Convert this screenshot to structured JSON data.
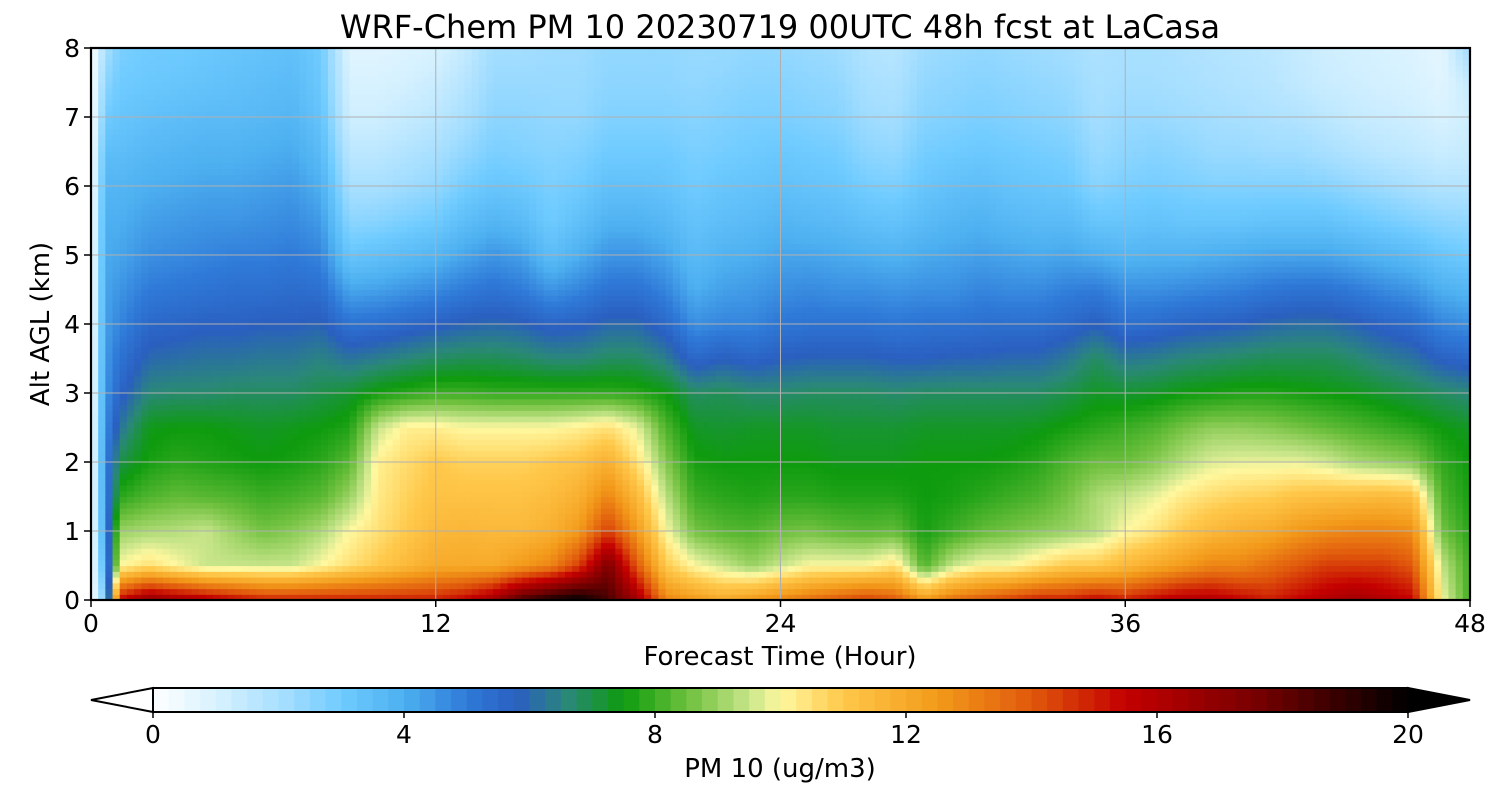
{
  "chart_data": {
    "type": "heatmap",
    "title": "WRF-Chem PM 10  20230719 00UTC 48h fcst at LaCasa",
    "xlabel": "Forecast Time (Hour)",
    "ylabel": "Alt AGL (km)",
    "xlim": [
      0,
      48
    ],
    "ylim": [
      0,
      8
    ],
    "x_ticks": [
      "0",
      "12",
      "24",
      "36",
      "48"
    ],
    "y_ticks": [
      "0",
      "1",
      "2",
      "3",
      "4",
      "5",
      "6",
      "7",
      "8"
    ],
    "grid": true,
    "colorbar": {
      "label": "PM 10  (ug/m3)",
      "range": [
        0,
        20
      ],
      "ticks": [
        "0",
        "4",
        "8",
        "12",
        "16",
        "20"
      ],
      "extend": "both",
      "stops": [
        {
          "v": 0,
          "color": "#ffffff"
        },
        {
          "v": 1,
          "color": "#d8f2ff"
        },
        {
          "v": 2.2,
          "color": "#9fdcff"
        },
        {
          "v": 3,
          "color": "#6fcbff"
        },
        {
          "v": 4,
          "color": "#4db0f0"
        },
        {
          "v": 5,
          "color": "#2f7ad8"
        },
        {
          "v": 5.8,
          "color": "#2a5fc0"
        },
        {
          "v": 6.6,
          "color": "#2a8878"
        },
        {
          "v": 7.5,
          "color": "#0e9b0e"
        },
        {
          "v": 8.5,
          "color": "#6cbf3c"
        },
        {
          "v": 9.5,
          "color": "#c8e58a"
        },
        {
          "v": 10,
          "color": "#fff8a0"
        },
        {
          "v": 11,
          "color": "#ffc84a"
        },
        {
          "v": 12.5,
          "color": "#f39a1a"
        },
        {
          "v": 14,
          "color": "#e0580c"
        },
        {
          "v": 15.5,
          "color": "#c40000"
        },
        {
          "v": 17.5,
          "color": "#7a0000"
        },
        {
          "v": 20,
          "color": "#000000"
        }
      ]
    },
    "series": [
      {
        "x": 0,
        "y": [
          0,
          0,
          0,
          0,
          0,
          0,
          0,
          0,
          0,
          0,
          0,
          0,
          0,
          0,
          0,
          0,
          0
        ]
      },
      {
        "x": 0.5,
        "y": [
          3,
          4,
          4.5,
          4.6,
          4.7,
          4.6,
          4.5,
          4.4,
          4.3,
          4.2,
          4.1,
          4,
          3.8,
          3.5,
          3,
          2.5,
          2
        ]
      },
      {
        "x": 1,
        "y": [
          15.5,
          10,
          9,
          7.8,
          7,
          6.2,
          5.6,
          5.2,
          4.8,
          4.5,
          4.2,
          4,
          3.8,
          3.5,
          3.2,
          3,
          2.8
        ]
      },
      {
        "x": 2,
        "y": [
          17,
          10.5,
          9.2,
          8.2,
          7.6,
          7.4,
          6.6,
          6,
          5.5,
          5,
          4.6,
          4.3,
          4,
          3.7,
          3.4,
          3.1,
          3
        ]
      },
      {
        "x": 3,
        "y": [
          16.5,
          10,
          9.3,
          8.4,
          7.8,
          7.5,
          6.7,
          6.1,
          5.6,
          5.1,
          4.7,
          4.4,
          4.1,
          3.8,
          3.5,
          3.2,
          3
        ]
      },
      {
        "x": 4,
        "y": [
          16,
          9.5,
          9.5,
          8.3,
          7.7,
          7.5,
          6.7,
          6.2,
          5.7,
          5.2,
          4.8,
          4.5,
          4.2,
          3.9,
          3.6,
          3.3,
          3.1
        ]
      },
      {
        "x": 5,
        "y": [
          15.5,
          9.5,
          9,
          8.2,
          7.6,
          7.4,
          6.8,
          6.2,
          5.7,
          5.3,
          4.9,
          4.5,
          4.2,
          3.9,
          3.6,
          3.4,
          3.2
        ]
      },
      {
        "x": 6,
        "y": [
          15,
          9.5,
          8.6,
          8,
          7.5,
          7.3,
          6.8,
          6.3,
          5.8,
          5.3,
          4.9,
          4.6,
          4.3,
          4,
          3.7,
          3.5,
          3.3
        ]
      },
      {
        "x": 7,
        "y": [
          15,
          9.5,
          8.8,
          8.1,
          7.6,
          7.4,
          6.8,
          6.3,
          5.8,
          5.4,
          5,
          4.7,
          4.4,
          4.1,
          3.8,
          3.6,
          3.4
        ]
      },
      {
        "x": 8,
        "y": [
          15,
          10,
          9.2,
          8.3,
          7.8,
          7.5,
          7,
          6.5,
          5.9,
          5.3,
          4.8,
          4.4,
          4,
          3.6,
          3.3,
          3.1,
          3
        ]
      },
      {
        "x": 9,
        "y": [
          15,
          10.5,
          10,
          9,
          8.3,
          7.7,
          7.2,
          6.2,
          5.2,
          4.2,
          3.2,
          2.5,
          2,
          1.6,
          1.2,
          1,
          0.8
        ]
      },
      {
        "x": 10,
        "y": [
          15,
          11,
          10.5,
          10.3,
          10.2,
          9.5,
          7.6,
          6.4,
          5.3,
          4.3,
          3.4,
          2.6,
          2,
          1.6,
          1.2,
          1,
          0.8
        ]
      },
      {
        "x": 11,
        "y": [
          15,
          11.5,
          11,
          10.8,
          10.6,
          10.2,
          7.8,
          6.6,
          5.5,
          4.5,
          3.6,
          2.8,
          2.2,
          1.8,
          1.4,
          1.1,
          0.9
        ]
      },
      {
        "x": 12,
        "y": [
          15,
          12,
          11.5,
          11.2,
          11,
          10.2,
          8,
          6.8,
          5.7,
          4.7,
          3.8,
          3,
          2.4,
          2,
          1.6,
          1.3,
          1
        ]
      },
      {
        "x": 13,
        "y": [
          15.5,
          12,
          11.6,
          11.2,
          10.8,
          10,
          8,
          6.9,
          5.9,
          5,
          4.2,
          3.5,
          2.9,
          2.4,
          2,
          1.7,
          1.4
        ]
      },
      {
        "x": 14,
        "y": [
          16.5,
          12,
          11.5,
          11.2,
          10.8,
          10,
          7.9,
          6.9,
          6,
          5.2,
          4.5,
          3.8,
          3.2,
          2.8,
          2.5,
          2.3,
          2.1
        ]
      },
      {
        "x": 15,
        "y": [
          18.5,
          12.5,
          11.5,
          11.2,
          10.8,
          10,
          7.9,
          6.8,
          5.9,
          5,
          4.3,
          3.6,
          3.1,
          2.7,
          2.5,
          2.3,
          2.1
        ]
      },
      {
        "x": 16,
        "y": [
          19.5,
          13,
          11.8,
          11.4,
          11,
          10,
          7.9,
          6.6,
          5.6,
          4.5,
          3.5,
          3,
          2.8,
          2.6,
          2.4,
          2.3,
          2.2
        ]
      },
      {
        "x": 17,
        "y": [
          20,
          14.5,
          12.5,
          11.8,
          11.2,
          10.2,
          7.9,
          6.6,
          5.7,
          4.8,
          4,
          3.4,
          3,
          2.7,
          2.4,
          2.3,
          2.2
        ]
      },
      {
        "x": 18,
        "y": [
          18.5,
          17.5,
          14.5,
          13,
          11.8,
          10.5,
          7.9,
          6.8,
          6,
          5.2,
          4.5,
          3.9,
          3.4,
          3,
          2.7,
          2.5,
          2.4
        ]
      },
      {
        "x": 19,
        "y": [
          16.5,
          14,
          12.5,
          11.5,
          10.5,
          9.8,
          7.8,
          6.8,
          6,
          5.2,
          4.5,
          3.9,
          3.4,
          3,
          2.7,
          2.5,
          2.4
        ]
      },
      {
        "x": 20,
        "y": [
          13,
          11,
          10,
          9.4,
          8.8,
          8.2,
          7.5,
          6.4,
          5.5,
          4.8,
          4.2,
          3.7,
          3.3,
          3,
          2.7,
          2.5,
          2.4
        ]
      },
      {
        "x": 21,
        "y": [
          12.5,
          10,
          8.6,
          8,
          7.6,
          7.3,
          6.8,
          5.5,
          4.6,
          4,
          3.6,
          3.3,
          3,
          2.8,
          2.6,
          2.4,
          2.3
        ]
      },
      {
        "x": 22,
        "y": [
          12,
          9.5,
          8.3,
          7.8,
          7.5,
          7.2,
          6.9,
          5.8,
          4.8,
          4.3,
          3.9,
          3.5,
          3.2,
          2.9,
          2.7,
          2.5,
          2.3
        ]
      },
      {
        "x": 23,
        "y": [
          12.5,
          9,
          8.2,
          7.7,
          7.5,
          7.3,
          6.7,
          5.6,
          4.8,
          4.4,
          4,
          3.6,
          3.3,
          3,
          2.8,
          2.6,
          2.4
        ]
      },
      {
        "x": 24,
        "y": [
          13,
          9.5,
          8.5,
          7.8,
          7.5,
          7.3,
          6.7,
          5.8,
          5.1,
          4.6,
          4.2,
          3.8,
          3.4,
          3.1,
          2.8,
          2.6,
          2.4
        ]
      },
      {
        "x": 25,
        "y": [
          13.5,
          10,
          8.6,
          7.8,
          7.5,
          7.3,
          6.8,
          5.9,
          5.2,
          4.7,
          4.2,
          3.7,
          3.3,
          3,
          2.7,
          2.5,
          2.3
        ]
      },
      {
        "x": 26,
        "y": [
          14,
          10,
          8.4,
          7.7,
          7.4,
          7.2,
          6.8,
          5.9,
          5.2,
          4.6,
          4.1,
          3.6,
          3.2,
          2.9,
          2.6,
          2.4,
          2.2
        ]
      },
      {
        "x": 27,
        "y": [
          14.5,
          10,
          8.3,
          7.7,
          7.4,
          7.2,
          6.8,
          5.9,
          5.2,
          4.6,
          4,
          3.4,
          2.9,
          2.5,
          2.2,
          2,
          1.8
        ]
      },
      {
        "x": 28,
        "y": [
          14,
          10.5,
          8.4,
          7.7,
          7.4,
          7.2,
          6.7,
          5.8,
          5.1,
          4.5,
          3.9,
          3.3,
          2.8,
          2.4,
          2.1,
          1.9,
          1.7
        ]
      },
      {
        "x": 29,
        "y": [
          12.5,
          8.2,
          7.6,
          7.5,
          7.5,
          7.3,
          6.8,
          5.8,
          5.2,
          4.6,
          4.1,
          3.6,
          3.2,
          2.9,
          2.6,
          2.4,
          2.2
        ]
      },
      {
        "x": 30,
        "y": [
          13.5,
          9.5,
          8,
          7.6,
          7.5,
          7.3,
          6.8,
          5.9,
          5.2,
          4.6,
          4.2,
          3.8,
          3.4,
          3,
          2.7,
          2.5,
          2.3
        ]
      },
      {
        "x": 31,
        "y": [
          14,
          10,
          8.4,
          7.8,
          7.5,
          7.3,
          6.8,
          5.9,
          5.3,
          4.8,
          4.3,
          3.9,
          3.5,
          3.1,
          2.8,
          2.6,
          2.4
        ]
      },
      {
        "x": 32,
        "y": [
          14.5,
          10,
          8.6,
          8,
          7.6,
          7.3,
          6.8,
          6,
          5.3,
          4.7,
          4.2,
          3.7,
          3.3,
          3,
          2.7,
          2.5,
          2.3
        ]
      },
      {
        "x": 33,
        "y": [
          15,
          10.5,
          8.8,
          8.2,
          7.8,
          7.4,
          6.8,
          6,
          5.3,
          4.7,
          4.1,
          3.6,
          3.2,
          2.9,
          2.6,
          2.4,
          2.2
        ]
      },
      {
        "x": 34,
        "y": [
          15,
          11,
          9,
          8.6,
          8.2,
          7.6,
          7,
          6.3,
          5.5,
          4.9,
          4.2,
          3.6,
          3.1,
          2.8,
          2.5,
          2.3,
          2.1
        ]
      },
      {
        "x": 35,
        "y": [
          15.5,
          11,
          9.3,
          9.2,
          8.5,
          7.8,
          7.3,
          6.8,
          5.8,
          5,
          4,
          3.2,
          2.6,
          2.3,
          2.1,
          2,
          1.9
        ]
      },
      {
        "x": 36,
        "y": [
          15,
          11.5,
          10,
          9.5,
          8.5,
          8,
          7.2,
          6.3,
          5.3,
          4.6,
          3.8,
          3.2,
          2.8,
          2.5,
          2.3,
          2.1,
          2
        ]
      },
      {
        "x": 37,
        "y": [
          15.5,
          12,
          10.4,
          9.8,
          8.8,
          8.2,
          7.3,
          6.4,
          5.4,
          4.6,
          3.9,
          3.3,
          2.9,
          2.6,
          2.3,
          2.1,
          2
        ]
      },
      {
        "x": 38,
        "y": [
          16,
          12.5,
          11,
          10.3,
          9.3,
          8.6,
          7.5,
          6.6,
          5.6,
          4.7,
          3.9,
          3.2,
          2.8,
          2.5,
          2.2,
          2,
          1.9
        ]
      },
      {
        "x": 39,
        "y": [
          16,
          13,
          11.5,
          10.6,
          9.7,
          8.9,
          7.6,
          6.7,
          5.7,
          4.8,
          4,
          3.2,
          2.7,
          2.3,
          2.1,
          1.9,
          1.8
        ]
      },
      {
        "x": 40,
        "y": [
          15.5,
          13,
          11.8,
          10.8,
          9.8,
          8.9,
          7.7,
          6.8,
          5.8,
          4.9,
          4.1,
          3.2,
          2.7,
          2.3,
          2,
          1.8,
          1.7
        ]
      },
      {
        "x": 41,
        "y": [
          15,
          13.5,
          12,
          10.9,
          9.8,
          8.8,
          7.7,
          6.9,
          6,
          5.1,
          4.2,
          3.3,
          2.7,
          2.2,
          1.9,
          1.7,
          1.6
        ]
      },
      {
        "x": 42,
        "y": [
          15.5,
          14,
          12.5,
          11.2,
          9.8,
          8.6,
          7.6,
          6.9,
          6.1,
          5.2,
          4.2,
          3.3,
          2.7,
          2.2,
          1.8,
          1.5,
          1.4
        ]
      },
      {
        "x": 43,
        "y": [
          16,
          14.5,
          12.8,
          11.3,
          9.6,
          8.4,
          7.5,
          6.9,
          6.1,
          5.2,
          4.2,
          3.3,
          2.6,
          2,
          1.6,
          1.3,
          1.2
        ]
      },
      {
        "x": 44,
        "y": [
          16.5,
          14.5,
          13,
          11.4,
          9.2,
          8.2,
          7.4,
          6.7,
          5.9,
          5,
          4,
          3.1,
          2.4,
          1.8,
          1.4,
          1.2,
          1.1
        ]
      },
      {
        "x": 45,
        "y": [
          16,
          14.5,
          13,
          11.5,
          9,
          8,
          7.2,
          6.4,
          5.6,
          4.7,
          3.8,
          2.9,
          2.2,
          1.6,
          1.3,
          1.1,
          1
        ]
      },
      {
        "x": 46,
        "y": [
          15.5,
          14,
          12.8,
          11.3,
          8.8,
          7.8,
          7,
          6.2,
          5.4,
          4.5,
          3.6,
          2.7,
          2,
          1.5,
          1.2,
          1,
          0.9
        ]
      },
      {
        "x": 47,
        "y": [
          10,
          9.5,
          8.6,
          8.2,
          7.9,
          7.5,
          6.8,
          5.7,
          4.8,
          4,
          3.2,
          2.5,
          1.8,
          1.3,
          1,
          0.8,
          0.7
        ]
      },
      {
        "x": 48,
        "y": [
          8,
          8,
          7.8,
          7.6,
          7.5,
          7.3,
          6.6,
          5.5,
          4.6,
          3.8,
          3,
          2.4,
          1.8,
          1.4,
          1.2,
          1.4,
          2.2
        ]
      }
    ],
    "levels_km": [
      0,
      0.5,
      1,
      1.5,
      2,
      2.5,
      3,
      3.5,
      4,
      4.5,
      5,
      5.5,
      6,
      6.5,
      7,
      7.5,
      8
    ]
  }
}
